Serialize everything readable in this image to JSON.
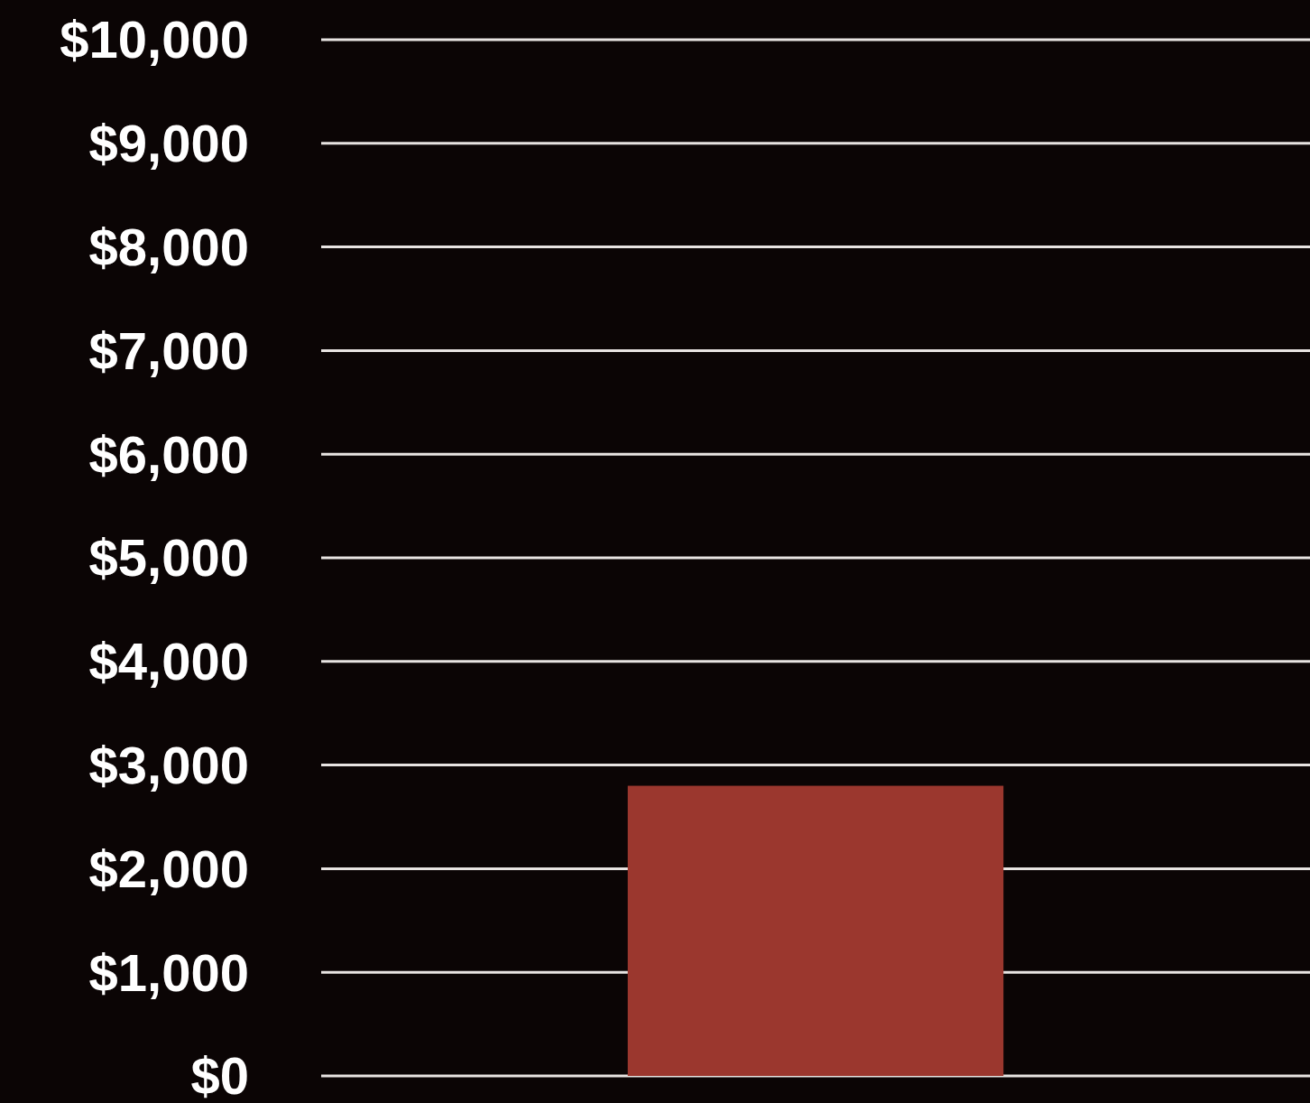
{
  "chart_data": {
    "type": "bar",
    "categories": [
      null
    ],
    "values": [
      2800
    ],
    "color": "#9b372e",
    "ylim": [
      0,
      10000
    ],
    "yticks": [
      {
        "value": 0,
        "label": "$0"
      },
      {
        "value": 1000,
        "label": "$1,000"
      },
      {
        "value": 2000,
        "label": "$2,000"
      },
      {
        "value": 3000,
        "label": "$3,000"
      },
      {
        "value": 4000,
        "label": "$4,000"
      },
      {
        "value": 5000,
        "label": "$5,000"
      },
      {
        "value": 6000,
        "label": "$6,000"
      },
      {
        "value": 7000,
        "label": "$7,000"
      },
      {
        "value": 8000,
        "label": "$8,000"
      },
      {
        "value": 9000,
        "label": "$9,000"
      },
      {
        "value": 10000,
        "label": "$10,000"
      }
    ],
    "grid": "y",
    "tick_labels": "y"
  }
}
